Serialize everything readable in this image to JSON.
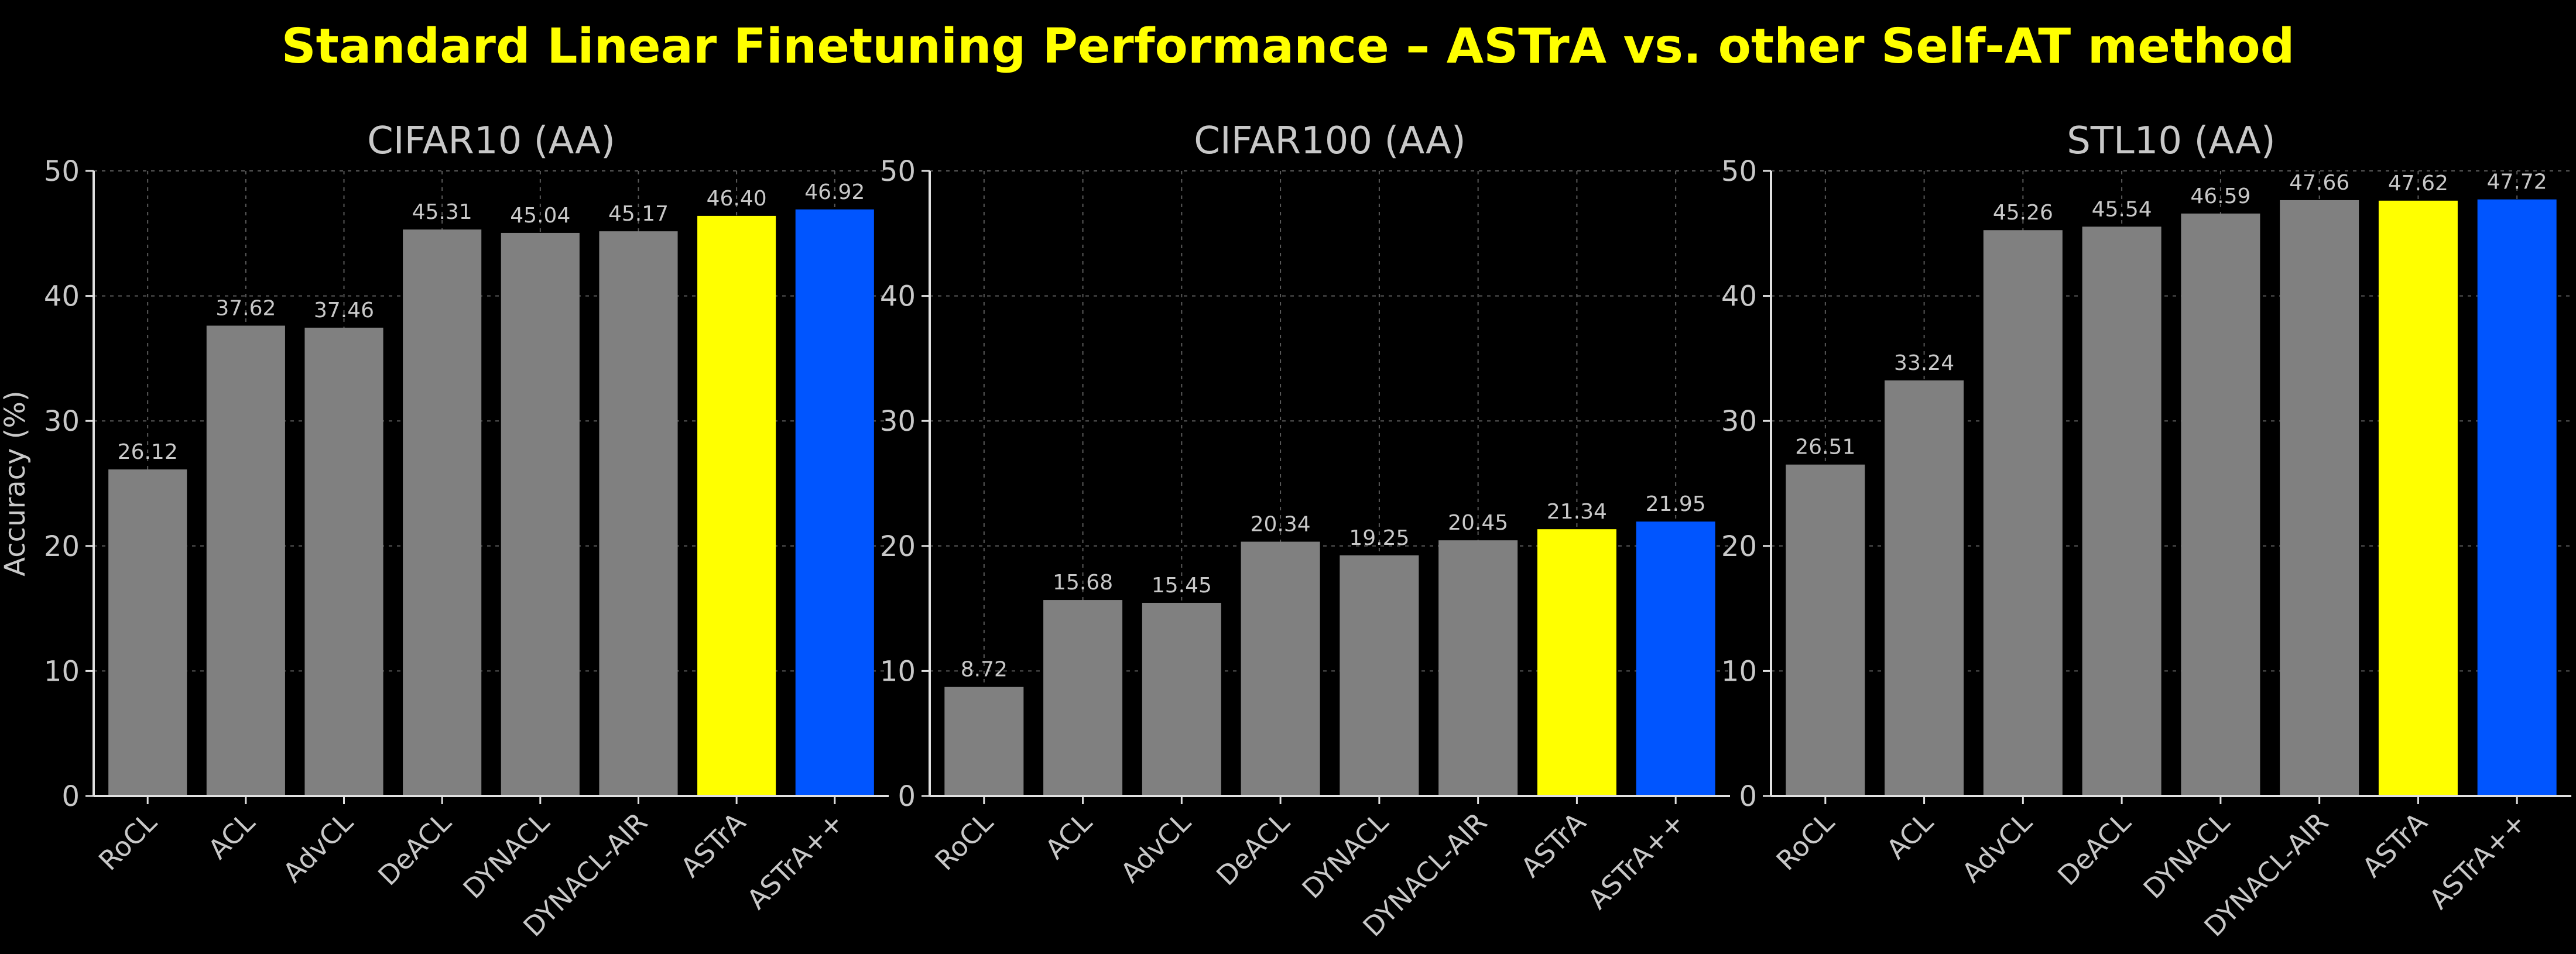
{
  "title": "Standard Linear Finetuning Performance – ASTrA vs. other Self-AT method",
  "colors": {
    "background": "#000000",
    "title": "#FFFF00",
    "default_bar": "#808080",
    "astra": "#FFFF00",
    "astra_pp": "#0055FF",
    "axis_text": "#C8C8C8"
  },
  "chart_data": [
    {
      "type": "bar",
      "title": "CIFAR10 (AA)",
      "ylabel": "Accuracy (%)",
      "xlabel": "",
      "ylim": [
        0,
        50
      ],
      "yticks": [
        0,
        10,
        20,
        30,
        40,
        50
      ],
      "grid": true,
      "categories": [
        "RoCL",
        "ACL",
        "AdvCL",
        "DeACL",
        "DYNACL",
        "DYNACL-AIR",
        "ASTrA",
        "ASTrA++"
      ],
      "values": [
        26.12,
        37.62,
        37.46,
        45.31,
        45.04,
        45.17,
        46.4,
        46.92
      ],
      "labels": [
        "26.12",
        "37.62",
        "37.46",
        "45.31",
        "45.04",
        "45.17",
        "46.40",
        "46.92"
      ],
      "bar_colors": [
        "#808080",
        "#808080",
        "#808080",
        "#808080",
        "#808080",
        "#808080",
        "#FFFF00",
        "#0055FF"
      ]
    },
    {
      "type": "bar",
      "title": "CIFAR100 (AA)",
      "ylabel": "",
      "xlabel": "",
      "ylim": [
        0,
        50
      ],
      "yticks": [
        0,
        10,
        20,
        30,
        40,
        50
      ],
      "grid": true,
      "categories": [
        "RoCL",
        "ACL",
        "AdvCL",
        "DeACL",
        "DYNACL",
        "DYNACL-AIR",
        "ASTrA",
        "ASTrA++"
      ],
      "values": [
        8.72,
        15.68,
        15.45,
        20.34,
        19.25,
        20.45,
        21.34,
        21.95
      ],
      "labels": [
        "8.72",
        "15.68",
        "15.45",
        "20.34",
        "19.25",
        "20.45",
        "21.34",
        "21.95"
      ],
      "bar_colors": [
        "#808080",
        "#808080",
        "#808080",
        "#808080",
        "#808080",
        "#808080",
        "#FFFF00",
        "#0055FF"
      ]
    },
    {
      "type": "bar",
      "title": "STL10 (AA)",
      "ylabel": "",
      "xlabel": "",
      "ylim": [
        0,
        50
      ],
      "yticks": [
        0,
        10,
        20,
        30,
        40,
        50
      ],
      "grid": true,
      "categories": [
        "RoCL",
        "ACL",
        "AdvCL",
        "DeACL",
        "DYNACL",
        "DYNACL-AIR",
        "ASTrA",
        "ASTrA++"
      ],
      "values": [
        26.51,
        33.24,
        45.26,
        45.54,
        46.59,
        47.66,
        47.62,
        47.72
      ],
      "labels": [
        "26.51",
        "33.24",
        "45.26",
        "45.54",
        "46.59",
        "47.66",
        "47.62",
        "47.72"
      ],
      "bar_colors": [
        "#808080",
        "#808080",
        "#808080",
        "#808080",
        "#808080",
        "#808080",
        "#FFFF00",
        "#0055FF"
      ]
    }
  ]
}
